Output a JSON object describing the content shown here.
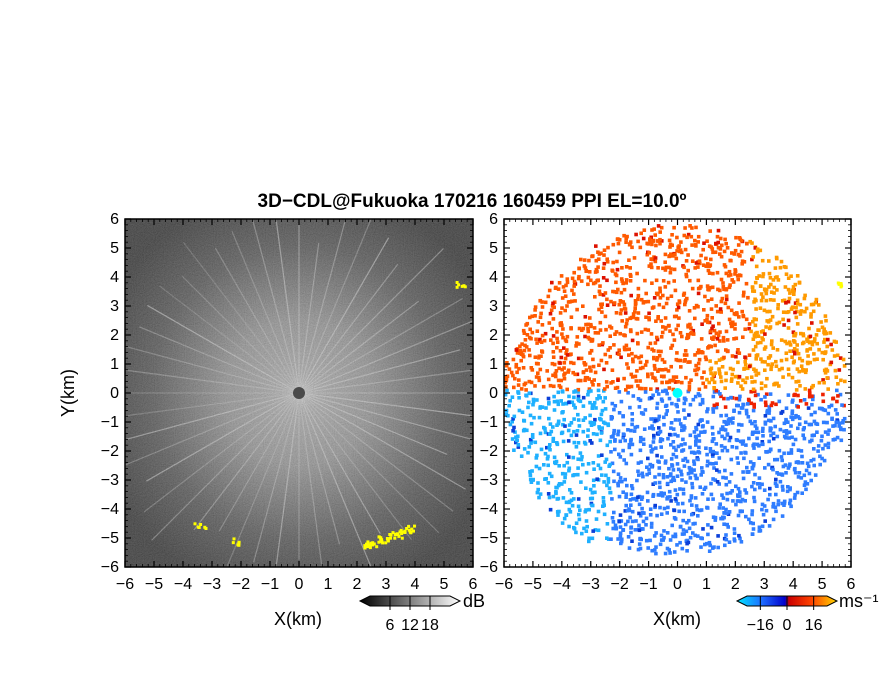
{
  "chart_data": [
    {
      "type": "heatmap",
      "panel": "reflectivity",
      "title": "3D−CDL@Fukuoka 170216 160459 PPI EL=10.0º",
      "xlabel": "X(km)",
      "ylabel": "Y(km)",
      "xlim": [
        -6,
        6
      ],
      "ylim": [
        -6,
        6
      ],
      "xticks": [
        "−6",
        "−5",
        "−4",
        "−3",
        "−2",
        "−1",
        "0",
        "1",
        "2",
        "3",
        "4",
        "5",
        "6"
      ],
      "yticks": [
        "6",
        "5",
        "4",
        "3",
        "2",
        "1",
        "0",
        "−1",
        "−2",
        "−3",
        "−4",
        "−5",
        "−6"
      ],
      "colormap": "grayscale",
      "colorbar": {
        "unit": "dB",
        "ticks": [
          "6",
          "12",
          "18"
        ],
        "tick_values": [
          6,
          12,
          18
        ],
        "range": [
          0,
          24
        ],
        "colors": [
          "#000000",
          "#ffffff"
        ]
      },
      "highlight_color": "#ffff00",
      "highlighted_echoes": [
        {
          "x": 5.6,
          "y": 3.8
        },
        {
          "x": -3.4,
          "y": -4.5
        },
        {
          "x": -2.2,
          "y": -5.1
        },
        {
          "x": 2.4,
          "y": -5.2
        },
        {
          "x": 2.9,
          "y": -5.0
        },
        {
          "x": 3.3,
          "y": -4.85
        },
        {
          "x": 3.7,
          "y": -4.65
        }
      ]
    },
    {
      "type": "heatmap",
      "panel": "doppler-velocity",
      "xlabel": "X(km)",
      "xlim": [
        -6,
        6
      ],
      "ylim": [
        -6,
        6
      ],
      "xticks": [
        "−6",
        "−5",
        "−4",
        "−3",
        "−2",
        "−1",
        "0",
        "1",
        "2",
        "3",
        "4",
        "5",
        "6"
      ],
      "yticks": [
        "6",
        "5",
        "4",
        "3",
        "2",
        "1",
        "0",
        "−1",
        "−2",
        "−3",
        "−4",
        "−5",
        "−6"
      ],
      "colormap": "diverging",
      "colorbar": {
        "unit": "ms⁻¹",
        "ticks": [
          "−16",
          "0",
          "16"
        ],
        "tick_values": [
          -16,
          0,
          16
        ],
        "range": [
          -24,
          24
        ],
        "colors": [
          "#00e5ff",
          "#1e6cff",
          "#0000cc",
          "#cc0000",
          "#ff4500",
          "#ffd700"
        ]
      },
      "region_colors": {
        "north": "#ff5a00",
        "northeast": "#ff9a00",
        "south": "#2f7dff",
        "west": "#1fb0ff",
        "center": "#00ffff",
        "highlight": "#ffff00"
      },
      "highlighted_echoes": [
        {
          "x": 5.6,
          "y": 3.8
        }
      ]
    }
  ]
}
